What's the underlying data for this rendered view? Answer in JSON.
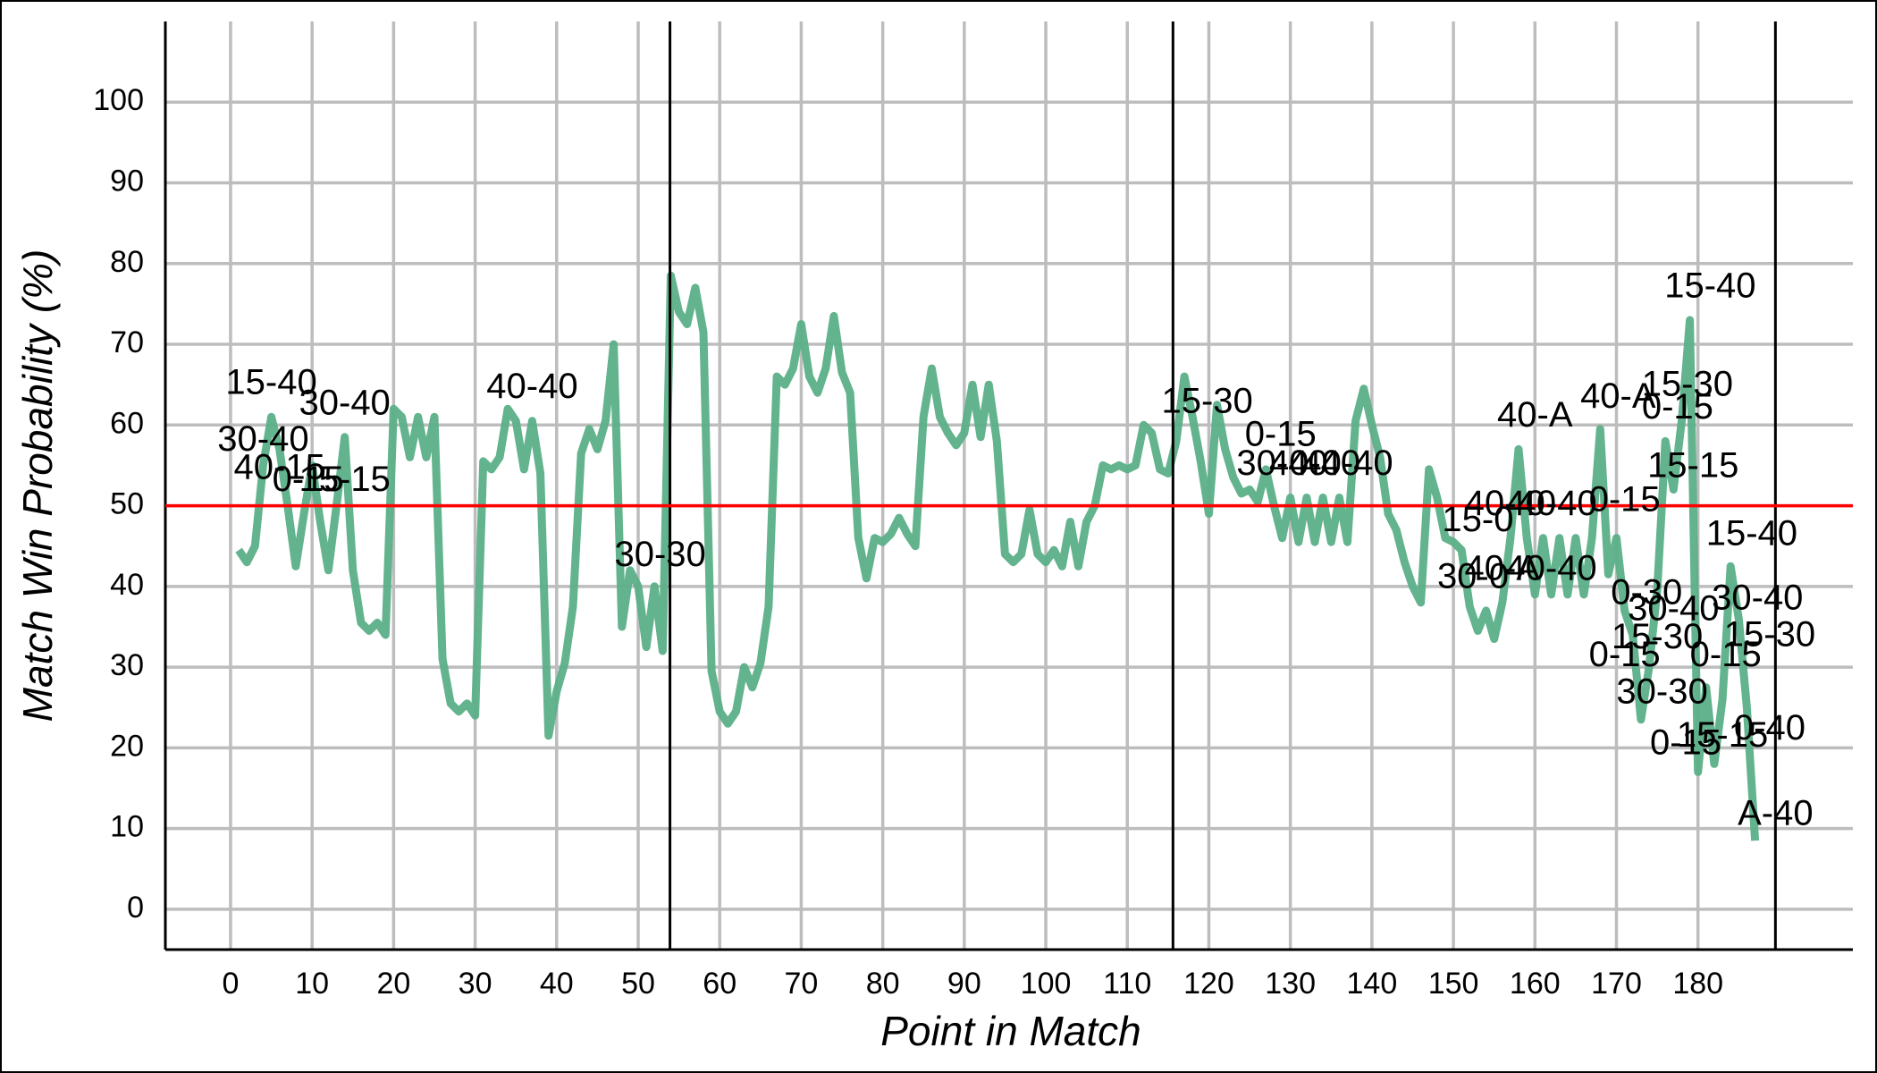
{
  "chart_data": {
    "type": "line",
    "x_label": "Point in Match",
    "y_label": "Match Win Probability (%)",
    "xlim": [
      -8,
      199
    ],
    "ylim": [
      -5,
      110
    ],
    "xticks": [
      0,
      10,
      20,
      30,
      40,
      50,
      60,
      70,
      80,
      90,
      100,
      110,
      120,
      130,
      140,
      150,
      160,
      170,
      180
    ],
    "yticks": [
      0,
      10,
      20,
      30,
      40,
      50,
      60,
      70,
      80,
      90,
      100
    ],
    "grid": true,
    "reference_line": {
      "y": 50,
      "color": "#ff0000"
    },
    "set_breaks": [
      53.9,
      115.6,
      189.5
    ],
    "x": [
      1,
      2,
      3,
      4,
      5,
      6,
      7,
      8,
      9,
      10,
      11,
      12,
      13,
      14,
      15,
      16,
      17,
      18,
      19,
      20,
      21,
      22,
      23,
      24,
      25,
      26,
      27,
      28,
      29,
      30,
      31,
      32,
      33,
      34,
      35,
      36,
      37,
      38,
      39,
      40,
      41,
      42,
      43,
      44,
      45,
      46,
      47,
      48,
      49,
      50,
      51,
      52,
      53,
      54,
      55,
      56,
      57,
      58,
      59,
      60,
      61,
      62,
      63,
      64,
      65,
      66,
      67,
      68,
      69,
      70,
      71,
      72,
      73,
      74,
      75,
      76,
      77,
      78,
      79,
      80,
      81,
      82,
      83,
      84,
      85,
      86,
      87,
      88,
      89,
      90,
      91,
      92,
      93,
      94,
      95,
      96,
      97,
      98,
      99,
      100,
      101,
      102,
      103,
      104,
      105,
      106,
      107,
      108,
      109,
      110,
      111,
      112,
      113,
      114,
      115,
      116,
      117,
      118,
      119,
      120,
      121,
      122,
      123,
      124,
      125,
      126,
      127,
      128,
      129,
      130,
      131,
      132,
      133,
      134,
      135,
      136,
      137,
      138,
      139,
      140,
      141,
      142,
      143,
      144,
      145,
      146,
      147,
      148,
      149,
      150,
      151,
      152,
      153,
      154,
      155,
      156,
      157,
      158,
      159,
      160,
      161,
      162,
      163,
      164,
      165,
      166,
      167,
      168,
      169,
      170,
      171,
      172,
      173,
      174,
      175,
      176,
      177,
      178,
      179,
      180,
      181,
      182,
      183,
      184,
      185,
      186,
      187
    ],
    "series": [
      {
        "color": "#5aaf88",
        "values": [
          44.5,
          43,
          45,
          55,
          61,
          57,
          50,
          42.5,
          49,
          55,
          48,
          42,
          50,
          58.5,
          42,
          35.5,
          34.5,
          35.5,
          34,
          62,
          61,
          56,
          61,
          56,
          61,
          31,
          25.5,
          24.5,
          25.5,
          24,
          55.5,
          54.5,
          56,
          62,
          60.5,
          54.5,
          60.5,
          54,
          21.5,
          27,
          30.5,
          37.5,
          56.5,
          59.5,
          57,
          60.5,
          70,
          35,
          42,
          40,
          32.5,
          40,
          32,
          78.5,
          74,
          72.5,
          77,
          71.5,
          29.5,
          24.5,
          23,
          24.5,
          30,
          27.5,
          30.5,
          37.5,
          66,
          65,
          67,
          72.5,
          66,
          64,
          67,
          73.5,
          66.5,
          64,
          46,
          41,
          46,
          45.5,
          46.5,
          48.5,
          46.5,
          45,
          61,
          67,
          61,
          59,
          57.5,
          59,
          65,
          58.5,
          65,
          58,
          44,
          43,
          44,
          49.5,
          44,
          43,
          44.5,
          42.5,
          48,
          42.5,
          48,
          50,
          55,
          54.5,
          55,
          54.5,
          55,
          60,
          59,
          54.5,
          54,
          58,
          66,
          61,
          55.5,
          49,
          62.5,
          57,
          53.5,
          51.5,
          52,
          50.5,
          54.5,
          50,
          46,
          51,
          45.5,
          51,
          45.5,
          51,
          45.5,
          51,
          45.5,
          60.5,
          64.5,
          60,
          56,
          49,
          47,
          43,
          40,
          38,
          54.5,
          51,
          46,
          45.5,
          44.5,
          37.5,
          34.5,
          37,
          33.5,
          38,
          46,
          57,
          46,
          39,
          46,
          39,
          46,
          39,
          46,
          39,
          46,
          59.5,
          41.5,
          46,
          37,
          34,
          23.5,
          30,
          39.5,
          58,
          52,
          60.5,
          73,
          17,
          27.5,
          18,
          26,
          42.5,
          36,
          25,
          8.5
        ]
      }
    ],
    "annotations": [
      {
        "text": "15-40",
        "x": 5,
        "y": 65
      },
      {
        "text": "30-40",
        "x": 14,
        "y": 62.5
      },
      {
        "text": "30-40",
        "x": 4,
        "y": 58
      },
      {
        "text": "40-15",
        "x": 6,
        "y": 54.5
      },
      {
        "text": "0-15",
        "x": 9.5,
        "y": 53
      },
      {
        "text": "15-15",
        "x": 14,
        "y": 53
      },
      {
        "text": "40-40",
        "x": 37,
        "y": 64.5
      },
      {
        "text": "30-30",
        "x": 52.7,
        "y": 43.7
      },
      {
        "text": "15-30",
        "x": 119.8,
        "y": 62.7
      },
      {
        "text": "0-15",
        "x": 128.8,
        "y": 58.6
      },
      {
        "text": "30-40",
        "x": 129,
        "y": 55
      },
      {
        "text": "40-40",
        "x": 133,
        "y": 55
      },
      {
        "text": "40-40",
        "x": 137,
        "y": 55
      },
      {
        "text": "15-0",
        "x": 153,
        "y": 48
      },
      {
        "text": "30-0",
        "x": 152.4,
        "y": 41
      },
      {
        "text": "40-A",
        "x": 156,
        "y": 42
      },
      {
        "text": "40-40",
        "x": 157,
        "y": 50
      },
      {
        "text": "40-40",
        "x": 162,
        "y": 50
      },
      {
        "text": "40-40",
        "x": 162,
        "y": 42
      },
      {
        "text": "40-A",
        "x": 160,
        "y": 61
      },
      {
        "text": "40-A",
        "x": 170.2,
        "y": 63.3
      },
      {
        "text": "15-30",
        "x": 178.7,
        "y": 64.8
      },
      {
        "text": "0-15",
        "x": 177.5,
        "y": 62
      },
      {
        "text": "15-40",
        "x": 181.5,
        "y": 77
      },
      {
        "text": "15-15",
        "x": 179.4,
        "y": 54.7
      },
      {
        "text": "0-15",
        "x": 171,
        "y": 50.5
      },
      {
        "text": "15-40",
        "x": 186.6,
        "y": 46.3
      },
      {
        "text": "30-40",
        "x": 187.3,
        "y": 38.3
      },
      {
        "text": "15-30",
        "x": 188.8,
        "y": 33.8
      },
      {
        "text": "0-30",
        "x": 173.7,
        "y": 39
      },
      {
        "text": "30-40",
        "x": 177,
        "y": 37
      },
      {
        "text": "15-30",
        "x": 175,
        "y": 33.5
      },
      {
        "text": "0-15",
        "x": 171,
        "y": 31.3
      },
      {
        "text": "0-15",
        "x": 183.4,
        "y": 31.3
      },
      {
        "text": "30-30",
        "x": 175.6,
        "y": 26.7
      },
      {
        "text": "15-15",
        "x": 183,
        "y": 21.3
      },
      {
        "text": "0-15",
        "x": 178.5,
        "y": 20.4
      },
      {
        "text": "0-40",
        "x": 188.8,
        "y": 22.2
      },
      {
        "text": "A-40",
        "x": 189.5,
        "y": 11.6
      }
    ]
  }
}
